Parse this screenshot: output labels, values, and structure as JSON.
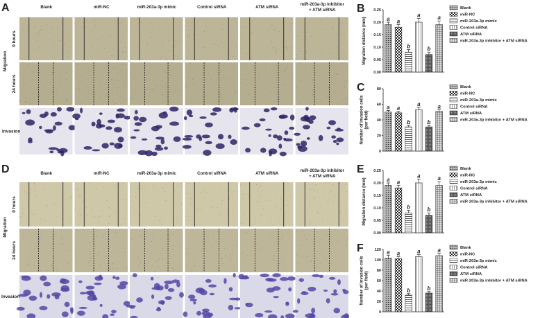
{
  "panels": [
    {
      "letter": "A",
      "columns": [
        [
          "Blank"
        ],
        [
          "miR-NC"
        ],
        [
          "miR-203a-3p mimic"
        ],
        [
          "Control siRNA"
        ],
        [
          "ATM siRNA"
        ],
        [
          "miR-203a-3p inhibitor",
          "+ ATM siRNA"
        ]
      ],
      "migration": "Migration",
      "hour0": "0 hours",
      "hour24": "24 hours",
      "invasion": "Invasion"
    },
    {
      "letter": "D",
      "columns": [
        [
          "Blank"
        ],
        [
          "miR-NC"
        ],
        [
          "miR-203a-3p mimic"
        ],
        [
          "Control siRNA"
        ],
        [
          "ATM siRNA"
        ],
        [
          "miR-203a-3p inhibitor",
          "+ ATM siRNA"
        ]
      ],
      "migration": "Migration",
      "hour0": "0 hours",
      "hour24": "24 hours",
      "invasion": "Invasion"
    }
  ],
  "chart_data": [
    {
      "type": "bar",
      "panel": "B",
      "ylabel": [
        "Migration distance (mm)"
      ],
      "categories": [
        "Blank",
        "miR-NC",
        "miR-203a-3p mimic",
        "Control siRNA",
        "ATM siRNA",
        "miR-203a-3p inhibitor + ATM siRNA"
      ],
      "values": [
        0.19,
        0.18,
        0.08,
        0.2,
        0.07,
        0.19
      ],
      "errors": [
        0.01,
        0.01,
        0.01,
        0.015,
        0.01,
        0.015
      ],
      "annotations": [
        "a",
        "a",
        "b",
        "a",
        "b",
        "a"
      ],
      "fills": [
        "dots",
        "check",
        "hlines",
        "vlines",
        "dense",
        "grid"
      ],
      "ylim": [
        0,
        0.25
      ],
      "yticks": [
        {
          "value": 0,
          "label": "0.00"
        },
        {
          "value": 0.05,
          "label": "0.05"
        },
        {
          "value": 0.1,
          "label": "0.10"
        },
        {
          "value": 0.15,
          "label": "0.15"
        },
        {
          "value": 0.2,
          "label": "0.20"
        },
        {
          "value": 0.25,
          "label": "0.25"
        }
      ]
    },
    {
      "type": "bar",
      "panel": "C",
      "ylabel": [
        "Number of invasion cells",
        "(per field)"
      ],
      "categories": [
        "Blank",
        "miR-NC",
        "miR-203a-3p mimic",
        "Control siRNA",
        "ATM siRNA",
        "miR-203a-3p inhibitor + ATM siRNA"
      ],
      "values": [
        50,
        49,
        31,
        53,
        31,
        51
      ],
      "errors": [
        2,
        2,
        2,
        3,
        2,
        2
      ],
      "annotations": [
        "a",
        "a",
        "b",
        "a",
        "b",
        "a"
      ],
      "fills": [
        "dots",
        "check",
        "hlines",
        "vlines",
        "dense",
        "grid"
      ],
      "ylim": [
        0,
        80
      ],
      "yticks": [
        0,
        20,
        40,
        60,
        80
      ]
    },
    {
      "type": "bar",
      "panel": "E",
      "ylabel": [
        "Migration distance (mm)"
      ],
      "categories": [
        "Blank",
        "miR-NC",
        "miR-203a-3p mimic",
        "Control siRNA",
        "ATM siRNA",
        "miR-203a-3p inhibitor + ATM siRNA"
      ],
      "values": [
        0.19,
        0.18,
        0.08,
        0.2,
        0.07,
        0.19
      ],
      "errors": [
        0.01,
        0.01,
        0.01,
        0.015,
        0.01,
        0.015
      ],
      "annotations": [
        "a",
        "a",
        "b",
        "a",
        "b",
        "a"
      ],
      "fills": [
        "dots",
        "check",
        "hlines",
        "vlines",
        "dense",
        "grid"
      ],
      "ylim": [
        0,
        0.25
      ],
      "yticks": [
        {
          "value": 0,
          "label": "0.00"
        },
        {
          "value": 0.05,
          "label": "0.05"
        },
        {
          "value": 0.1,
          "label": "0.10"
        },
        {
          "value": 0.15,
          "label": "0.15"
        },
        {
          "value": 0.2,
          "label": "0.20"
        },
        {
          "value": 0.25,
          "label": "0.25"
        }
      ]
    },
    {
      "type": "bar",
      "panel": "F",
      "ylabel": [
        "Number of invasion cells",
        "(per field)"
      ],
      "categories": [
        "Blank",
        "miR-NC",
        "miR-203a-3p mimic",
        "Control siRNA",
        "ATM siRNA",
        "miR-203a-3p inhibitor + ATM siRNA"
      ],
      "values": [
        103,
        102,
        32,
        106,
        36,
        108
      ],
      "errors": [
        6,
        4,
        3,
        4,
        3,
        5
      ],
      "annotations": [
        "a",
        "a",
        "b",
        "a",
        "b",
        "a"
      ],
      "fills": [
        "dots",
        "check",
        "hlines",
        "vlines",
        "dense",
        "grid"
      ],
      "ylim": [
        0,
        120
      ],
      "yticks": [
        0,
        20,
        40,
        60,
        80,
        100,
        120
      ]
    }
  ]
}
